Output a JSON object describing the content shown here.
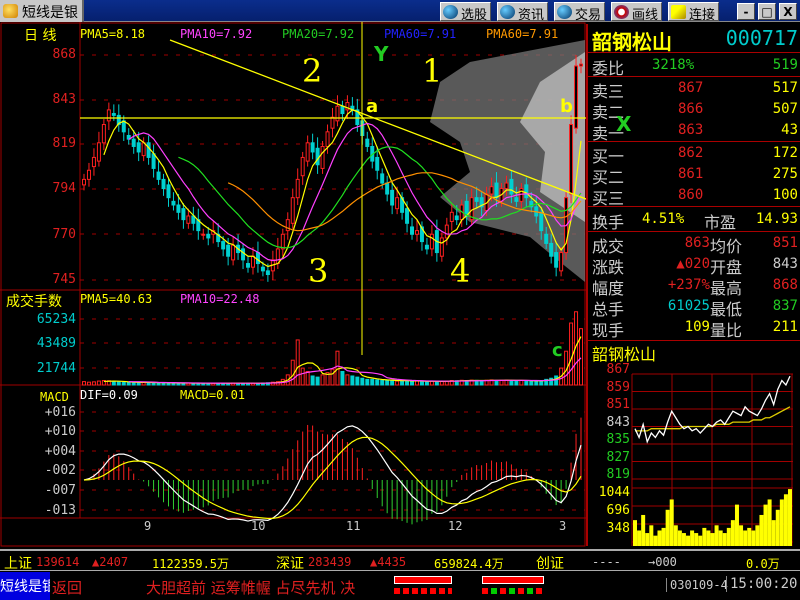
{
  "titlebar": {
    "app_title": "短线是银",
    "buttons": [
      {
        "label": "选股",
        "icon": "globe-icon"
      },
      {
        "label": "资讯",
        "icon": "globe-icon"
      },
      {
        "label": "交易",
        "icon": "globe-icon"
      },
      {
        "label": "画线",
        "icon": "draw-icon"
      },
      {
        "label": "连接",
        "icon": "key-icon"
      }
    ],
    "minimize": "-",
    "maximize": "□",
    "close": "X"
  },
  "chart_header": {
    "period": "日  线",
    "pma5": "PMA5=8.18",
    "pma10": "PMA10=7.92",
    "pma20": "PMA20=7.92",
    "pma60a": "PMA60=7.91",
    "pma60b": "PMA60=7.91"
  },
  "price_axis": [
    "868",
    "843",
    "819",
    "794",
    "770",
    "745"
  ],
  "annotations": {
    "n1": "1",
    "n2": "2",
    "n3": "3",
    "n4": "4",
    "a": "a",
    "b": "b",
    "c": "c",
    "x": "X",
    "y": "Y"
  },
  "volume_panel": {
    "title": "成交手数",
    "pma5": "PMA5=40.63",
    "pma10": "PMA10=22.48",
    "axis": [
      "65234",
      "43489",
      "21744"
    ]
  },
  "macd_panel": {
    "title": "MACD",
    "dif": "DIF=0.09",
    "macd": "MACD=0.01",
    "axis": [
      "+016",
      "+010",
      "+004",
      "-002",
      "-007",
      "-013"
    ]
  },
  "x_axis": [
    "9",
    "10",
    "11",
    "12",
    "3"
  ],
  "colors": {
    "up": "#ff2020",
    "down": "#00d0d0",
    "ma5": "#ffff00",
    "ma10": "#ff40ff",
    "ma20": "#20e020",
    "ma60": "#ff9000",
    "grid": "#a00000"
  },
  "chart_data": {
    "type": "candlestick",
    "closes": [
      800,
      805,
      812,
      820,
      830,
      838,
      835,
      830,
      826,
      822,
      818,
      815,
      820,
      812,
      806,
      800,
      795,
      790,
      786,
      782,
      778,
      780,
      776,
      772,
      770,
      768,
      772,
      766,
      762,
      758,
      764,
      760,
      756,
      752,
      758,
      754,
      750,
      748,
      756,
      762,
      770,
      778,
      790,
      800,
      812,
      820,
      815,
      808,
      818,
      826,
      834,
      840,
      836,
      842,
      838,
      830,
      824,
      818,
      810,
      805,
      798,
      792,
      786,
      790,
      782,
      776,
      770,
      772,
      766,
      762,
      770,
      760,
      768,
      775,
      782,
      778,
      786,
      780,
      790,
      788,
      785,
      792,
      796,
      790,
      795,
      798,
      792,
      788,
      795,
      790,
      785,
      780,
      772,
      765,
      758,
      752,
      760,
      790,
      830,
      862,
      863
    ],
    "volumes": [
      3000,
      2500,
      2800,
      3500,
      4000,
      3800,
      3000,
      2600,
      2400,
      2200,
      2600,
      2000,
      2400,
      2200,
      2000,
      1800,
      2000,
      1900,
      1700,
      1600,
      1800,
      1700,
      1600,
      1500,
      1800,
      1600,
      1500,
      1700,
      1600,
      1500,
      1800,
      1600,
      1500,
      1700,
      1600,
      1500,
      1800,
      2000,
      2500,
      3000,
      5000,
      9000,
      22000,
      40000,
      15000,
      12000,
      8000,
      7000,
      9000,
      11000,
      14000,
      30000,
      12000,
      9000,
      8000,
      7000,
      6000,
      5000,
      5000,
      4500,
      4000,
      4200,
      3800,
      3500,
      4000,
      3600,
      3400,
      3500,
      3200,
      3000,
      3500,
      3300,
      3100,
      3400,
      4000,
      3800,
      4200,
      3900,
      4300,
      4100,
      3800,
      4200,
      4500,
      4000,
      4200,
      4400,
      4000,
      3900,
      4100,
      3800,
      3600,
      3500,
      4000,
      5000,
      6000,
      8000,
      15000,
      30000,
      55000,
      65000,
      50000
    ]
  },
  "quote": {
    "name": "韶钢松山",
    "code": "000717",
    "weibi": {
      "label": "委比",
      "pct": "3218%",
      "diff": "519"
    },
    "sells": [
      {
        "label": "卖三",
        "price": "867",
        "vol": "517"
      },
      {
        "label": "卖二",
        "price": "866",
        "vol": "507"
      },
      {
        "label": "卖一",
        "price": "863",
        "vol": "43"
      }
    ],
    "buys": [
      {
        "label": "买一",
        "price": "862",
        "vol": "172"
      },
      {
        "label": "买二",
        "price": "861",
        "vol": "275"
      },
      {
        "label": "买三",
        "price": "860",
        "vol": "100"
      }
    ],
    "turnover_label": "换手",
    "turnover": "4.51%",
    "pe_label": "市盈",
    "pe": "14.93",
    "stats": [
      {
        "l1": "成交",
        "v1": "863",
        "l2": "均价",
        "v2": "851"
      },
      {
        "l1": "涨跌",
        "v1": "▲020",
        "l2": "开盘",
        "v2": "843"
      },
      {
        "l1": "幅度",
        "v1": "+237%",
        "l2": "最高",
        "v2": "868"
      },
      {
        "l1": "总手",
        "v1": "61025",
        "l2": "最低",
        "v2": "837"
      },
      {
        "l1": "现手",
        "v1": "109",
        "l2": "量比",
        "v2": "211"
      }
    ]
  },
  "intraday": {
    "title": "韶钢松山",
    "price_axis": [
      "867",
      "859",
      "851",
      "843",
      "835",
      "827",
      "819"
    ],
    "volume_axis": [
      "1044",
      "696",
      "348"
    ],
    "prices": [
      842,
      838,
      844,
      836,
      840,
      838,
      841,
      839,
      845,
      850,
      847,
      844,
      842,
      843,
      841,
      842,
      840,
      842,
      844,
      843,
      845,
      846,
      844,
      847,
      850,
      849,
      848,
      852,
      850,
      849,
      848,
      851,
      855,
      858,
      853,
      860,
      864,
      862,
      866
    ],
    "avg": [
      841,
      841,
      841,
      841,
      842,
      842,
      842,
      842,
      842,
      842,
      842,
      842,
      843,
      843,
      843,
      843,
      843,
      843,
      843,
      843,
      844,
      844,
      844,
      844,
      845,
      845,
      845,
      845,
      845,
      846,
      846,
      846,
      847,
      847,
      848,
      849,
      850,
      851,
      852
    ],
    "volumes": [
      500,
      300,
      600,
      250,
      400,
      200,
      300,
      350,
      700,
      900,
      400,
      300,
      250,
      200,
      300,
      250,
      200,
      350,
      300,
      250,
      400,
      300,
      250,
      350,
      500,
      800,
      400,
      300,
      350,
      300,
      400,
      600,
      800,
      900,
      500,
      700,
      900,
      1000,
      1100
    ]
  },
  "status": {
    "sh_label": "上证",
    "sh_index": "139614",
    "sh_change": "▲2407",
    "sh_amount": "1122359.5万",
    "sz_label": "深证",
    "sz_index": "283439",
    "sz_change": "▲4435",
    "sz_amount": "659824.4万",
    "cy_label": "创证",
    "cy_index": "----",
    "cy_change": "→000",
    "cy_amount": "0.0万"
  },
  "bottom": {
    "app_label": "短线是银",
    "ticker_left": "返回",
    "ticker": "大胆超前 运筹帷幄 占尽先机 决",
    "date": "030109-4",
    "time": "15:00:20"
  }
}
